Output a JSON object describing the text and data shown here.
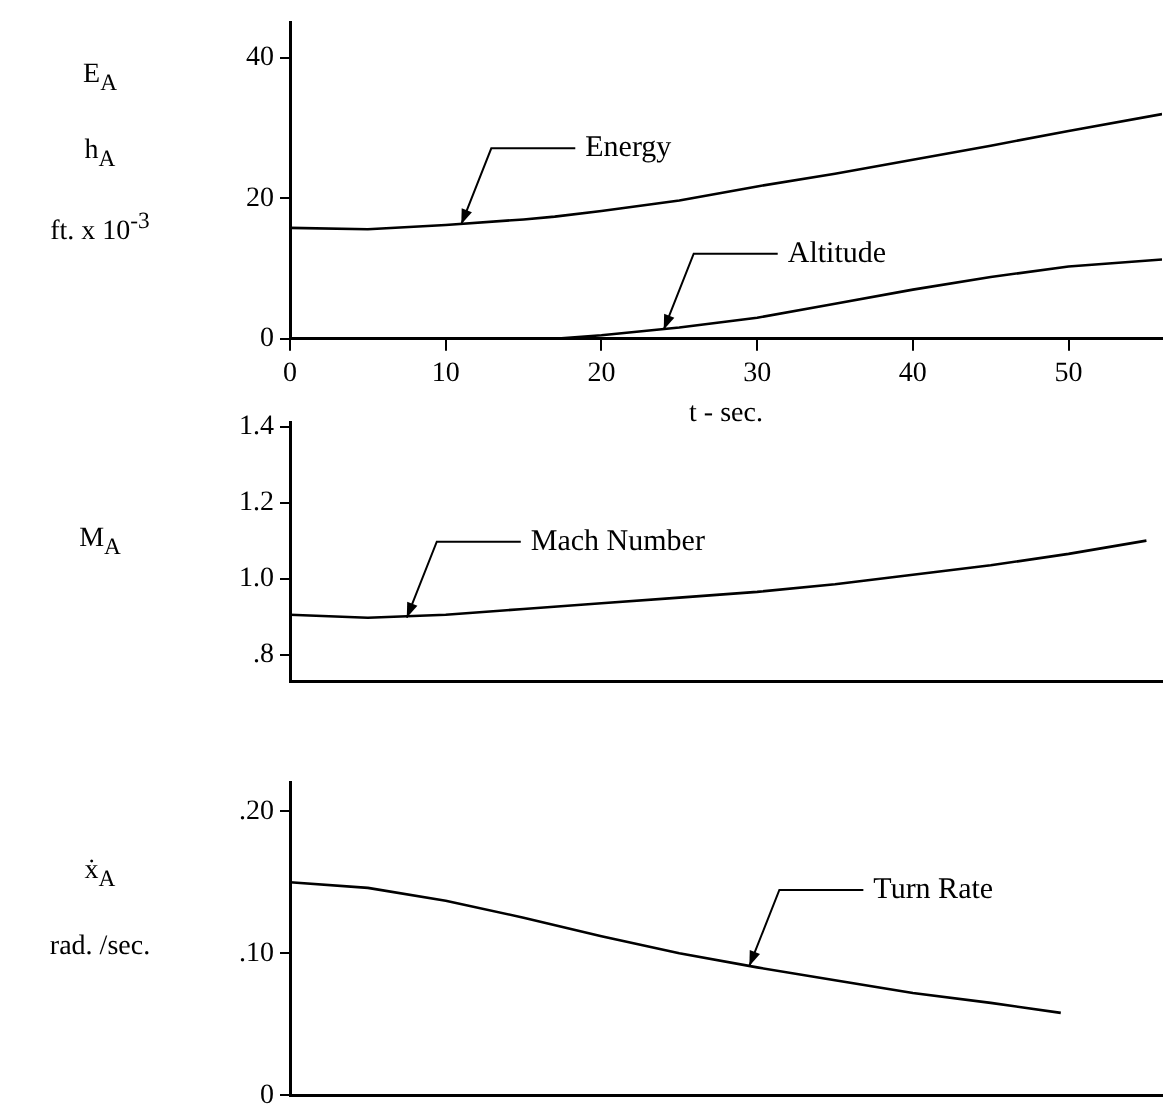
{
  "chart_data": [
    {
      "type": "line",
      "xlabel": "t - sec.",
      "ylabel": "E$_{A}$\nh$_{A}$\nft. x 10$^{-3}$",
      "x": [
        0,
        5,
        10,
        15,
        17,
        20,
        25,
        30,
        35,
        40,
        45,
        50,
        56
      ],
      "series": [
        {
          "color": "#000000",
          "values": [
            15.8,
            15.6,
            16.2,
            17,
            17.4,
            18.2,
            19.7,
            21.7,
            23.5,
            25.5,
            27.5,
            29.6,
            32
          ]
        },
        {
          "color": "#000000",
          "values": [
            0,
            0,
            0,
            0,
            0,
            0.5,
            1.6,
            3,
            5,
            7,
            8.8,
            10.3,
            11.3
          ]
        }
      ],
      "xlim": [
        0,
        56
      ],
      "xticks": [
        0,
        10,
        20,
        30,
        40,
        50
      ],
      "ylim": [
        0,
        45
      ],
      "yticks": [
        0,
        20,
        40
      ],
      "annotations": [
        {
          "text": "Energy",
          "x": 11,
          "y": 16.3
        },
        {
          "text": "Altitude",
          "x": 24,
          "y": 1.3
        }
      ]
    },
    {
      "type": "line",
      "ylabel": "M$_{A}$",
      "x": [
        0,
        5,
        10,
        15,
        20,
        25,
        30,
        35,
        40,
        45,
        50,
        55
      ],
      "series": [
        {
          "color": "#000000",
          "values": [
            0.905,
            0.897,
            0.905,
            0.92,
            0.935,
            0.95,
            0.965,
            0.985,
            1.01,
            1.035,
            1.065,
            1.1
          ]
        }
      ],
      "xlim": [
        0,
        56
      ],
      "ylim": [
        0.73,
        1.41
      ],
      "yticks": [
        {
          "value": 0.8,
          "label": ".8"
        },
        {
          "value": 1.0,
          "label": "1.0"
        },
        {
          "value": 1.2,
          "label": "1.2"
        },
        {
          "value": 1.4,
          "label": "1.4"
        }
      ],
      "tick_labels": "y",
      "annotations": [
        {
          "text": "Mach Number",
          "x": 7.5,
          "y": 0.897
        }
      ]
    },
    {
      "type": "line",
      "ylabel": "ẋ$_{A}$\nrad. /sec.",
      "x": [
        0,
        5,
        10,
        15,
        20,
        25,
        30,
        35,
        40,
        45,
        49.5
      ],
      "series": [
        {
          "color": "#000000",
          "values": [
            0.15,
            0.146,
            0.137,
            0.125,
            0.112,
            0.1,
            0.09,
            0.081,
            0.072,
            0.065,
            0.058
          ]
        }
      ],
      "xlim": [
        0,
        56
      ],
      "ylim": [
        0,
        0.22
      ],
      "yticks": [
        0,
        {
          "value": 0.1,
          "label": ".10"
        },
        {
          "value": 0.2,
          "label": ".20"
        }
      ],
      "tick_labels": "y",
      "annotations": [
        {
          "text": "Turn Rate",
          "x": 29.5,
          "y": 0.091
        }
      ]
    }
  ]
}
